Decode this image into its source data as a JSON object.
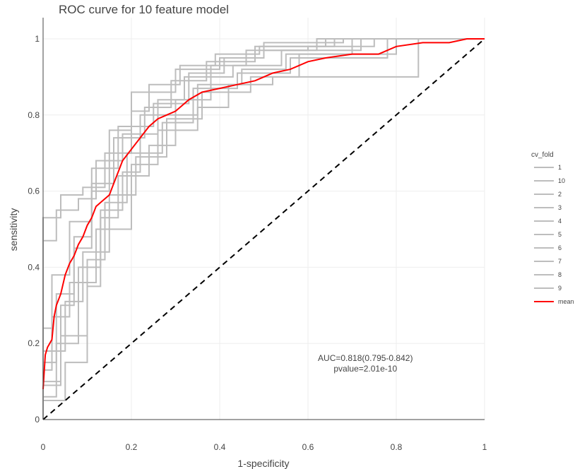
{
  "chart_data": {
    "type": "line",
    "title": "ROC curve for 10 feature model",
    "xlabel": "1-specificity",
    "ylabel": "sensitivity",
    "xlim": [
      0,
      1
    ],
    "ylim": [
      0,
      1
    ],
    "x_ticks": [
      0,
      0.2,
      0.4,
      0.6,
      0.8,
      1
    ],
    "x_tick_labels": [
      "0",
      "0.2",
      "0.4",
      "0.6",
      "0.8",
      "1"
    ],
    "y_ticks": [
      0,
      0.2,
      0.4,
      0.6,
      0.8,
      1
    ],
    "y_tick_labels": [
      "0",
      "0.2",
      "0.4",
      "0.6",
      "0.8",
      "1"
    ],
    "grid": true,
    "legend_title": "cv_fold",
    "legend_position": "right",
    "colors": {
      "fold": "#bdbdbd",
      "mean": "#ff0000",
      "diagonal": "#000000",
      "grid": "#eeeeee",
      "axis": "#444444"
    },
    "series": [
      {
        "name": "1",
        "x": [
          0,
          0,
          0.04,
          0.04,
          0.07,
          0.07,
          0.11,
          0.11,
          0.15,
          0.15,
          0.2,
          0.2,
          0.3,
          0.3,
          0.4,
          0.4,
          0.5,
          0.5,
          0.6,
          0.6,
          0.75,
          0.75,
          1
        ],
        "y": [
          0,
          0.1,
          0.1,
          0.3,
          0.3,
          0.45,
          0.45,
          0.6,
          0.6,
          0.76,
          0.76,
          0.86,
          0.86,
          0.92,
          0.92,
          0.95,
          0.95,
          0.97,
          0.97,
          0.98,
          0.98,
          1,
          1
        ]
      },
      {
        "name": "10",
        "x": [
          0,
          0,
          0.05,
          0.05,
          0.1,
          0.1,
          0.13,
          0.13,
          0.18,
          0.18,
          0.22,
          0.22,
          0.35,
          0.35,
          0.45,
          0.45,
          0.55,
          0.55,
          0.7,
          0.7,
          1
        ],
        "y": [
          0,
          0.05,
          0.05,
          0.15,
          0.15,
          0.35,
          0.35,
          0.55,
          0.55,
          0.65,
          0.65,
          0.8,
          0.8,
          0.88,
          0.88,
          0.92,
          0.92,
          0.96,
          0.96,
          1,
          1
        ]
      },
      {
        "name": "2",
        "x": [
          0,
          0,
          0.02,
          0.02,
          0.06,
          0.06,
          0.12,
          0.12,
          0.2,
          0.2,
          0.26,
          0.26,
          0.35,
          0.35,
          0.42,
          0.42,
          0.52,
          0.52,
          0.85,
          0.85,
          1
        ],
        "y": [
          0,
          0.13,
          0.13,
          0.27,
          0.27,
          0.36,
          0.36,
          0.5,
          0.5,
          0.67,
          0.67,
          0.76,
          0.76,
          0.82,
          0.82,
          0.88,
          0.88,
          0.9,
          0.9,
          1,
          1
        ]
      },
      {
        "name": "3",
        "x": [
          0,
          0,
          0.03,
          0.03,
          0.08,
          0.08,
          0.13,
          0.13,
          0.17,
          0.17,
          0.24,
          0.24,
          0.3,
          0.3,
          0.38,
          0.38,
          0.46,
          0.46,
          0.62,
          0.62,
          1
        ],
        "y": [
          0,
          0.06,
          0.06,
          0.2,
          0.2,
          0.4,
          0.4,
          0.53,
          0.53,
          0.64,
          0.64,
          0.72,
          0.72,
          0.84,
          0.84,
          0.93,
          0.93,
          0.97,
          0.97,
          1,
          1
        ]
      },
      {
        "name": "4",
        "x": [
          0,
          0,
          0.04,
          0.04,
          0.1,
          0.1,
          0.14,
          0.14,
          0.19,
          0.19,
          0.27,
          0.27,
          0.34,
          0.34,
          0.44,
          0.44,
          0.56,
          0.56,
          0.78,
          0.78,
          1
        ],
        "y": [
          0,
          0.09,
          0.09,
          0.22,
          0.22,
          0.42,
          0.42,
          0.57,
          0.57,
          0.7,
          0.7,
          0.78,
          0.78,
          0.87,
          0.87,
          0.91,
          0.91,
          0.95,
          0.95,
          1,
          1
        ]
      },
      {
        "name": "5",
        "x": [
          0,
          0,
          0.03,
          0.03,
          0.07,
          0.07,
          0.11,
          0.11,
          0.16,
          0.16,
          0.23,
          0.23,
          0.29,
          0.29,
          0.37,
          0.37,
          0.48,
          0.48,
          0.66,
          0.66,
          1
        ],
        "y": [
          0,
          0.15,
          0.15,
          0.33,
          0.33,
          0.48,
          0.48,
          0.62,
          0.62,
          0.74,
          0.74,
          0.82,
          0.82,
          0.89,
          0.89,
          0.94,
          0.94,
          0.98,
          0.98,
          1,
          1
        ]
      },
      {
        "name": "6",
        "x": [
          0,
          0,
          0.05,
          0.05,
          0.09,
          0.09,
          0.15,
          0.15,
          0.21,
          0.21,
          0.28,
          0.28,
          0.36,
          0.36,
          0.47,
          0.47,
          0.58,
          0.58,
          0.8,
          0.8,
          1
        ],
        "y": [
          0,
          0.18,
          0.18,
          0.31,
          0.31,
          0.44,
          0.44,
          0.59,
          0.59,
          0.69,
          0.69,
          0.79,
          0.79,
          0.86,
          0.86,
          0.9,
          0.9,
          0.96,
          0.96,
          1,
          1
        ]
      },
      {
        "name": "7",
        "x": [
          0,
          0,
          0.02,
          0.02,
          0.06,
          0.06,
          0.11,
          0.11,
          0.17,
          0.17,
          0.25,
          0.25,
          0.33,
          0.33,
          0.41,
          0.41,
          0.5,
          0.5,
          0.68,
          0.68,
          1
        ],
        "y": [
          0,
          0.24,
          0.24,
          0.38,
          0.38,
          0.52,
          0.52,
          0.66,
          0.66,
          0.77,
          0.77,
          0.83,
          0.83,
          0.91,
          0.91,
          0.95,
          0.95,
          0.99,
          0.99,
          1,
          1
        ]
      },
      {
        "name": "8",
        "x": [
          0,
          0,
          0.03,
          0.03,
          0.08,
          0.08,
          0.12,
          0.12,
          0.18,
          0.18,
          0.26,
          0.26,
          0.32,
          0.32,
          0.43,
          0.43,
          0.54,
          0.54,
          0.72,
          0.72,
          1
        ],
        "y": [
          0,
          0.47,
          0.47,
          0.55,
          0.55,
          0.58,
          0.58,
          0.68,
          0.68,
          0.75,
          0.75,
          0.84,
          0.84,
          0.9,
          0.9,
          0.93,
          0.93,
          0.97,
          0.97,
          1,
          1
        ]
      },
      {
        "name": "9",
        "x": [
          0,
          0,
          0.04,
          0.04,
          0.09,
          0.09,
          0.14,
          0.14,
          0.2,
          0.2,
          0.24,
          0.24,
          0.31,
          0.31,
          0.39,
          0.39,
          0.49,
          0.49,
          0.64,
          0.64,
          1
        ],
        "y": [
          0,
          0.53,
          0.53,
          0.59,
          0.59,
          0.61,
          0.61,
          0.7,
          0.7,
          0.81,
          0.81,
          0.88,
          0.88,
          0.93,
          0.93,
          0.96,
          0.96,
          0.98,
          0.98,
          1,
          1
        ]
      },
      {
        "name": "mean",
        "x": [
          0,
          0.005,
          0.01,
          0.02,
          0.025,
          0.03,
          0.04,
          0.05,
          0.06,
          0.07,
          0.08,
          0.09,
          0.1,
          0.11,
          0.12,
          0.13,
          0.15,
          0.16,
          0.17,
          0.18,
          0.2,
          0.22,
          0.24,
          0.26,
          0.28,
          0.3,
          0.33,
          0.36,
          0.4,
          0.44,
          0.48,
          0.52,
          0.56,
          0.6,
          0.64,
          0.7,
          0.76,
          0.8,
          0.86,
          0.92,
          0.96,
          1
        ],
        "y": [
          0.08,
          0.17,
          0.19,
          0.21,
          0.27,
          0.3,
          0.33,
          0.38,
          0.41,
          0.43,
          0.46,
          0.48,
          0.51,
          0.53,
          0.56,
          0.57,
          0.59,
          0.62,
          0.65,
          0.68,
          0.71,
          0.74,
          0.77,
          0.79,
          0.8,
          0.81,
          0.84,
          0.86,
          0.87,
          0.88,
          0.89,
          0.91,
          0.92,
          0.94,
          0.95,
          0.96,
          0.96,
          0.98,
          0.99,
          0.99,
          1,
          1
        ]
      }
    ],
    "diagonal": {
      "x": [
        0,
        1
      ],
      "y": [
        0,
        1
      ]
    },
    "annotation": {
      "line1": "AUC=0.818(0.795-0.842)",
      "line2": "pvalue=2.01e-10",
      "x": 0.73,
      "y": 0.15
    }
  }
}
